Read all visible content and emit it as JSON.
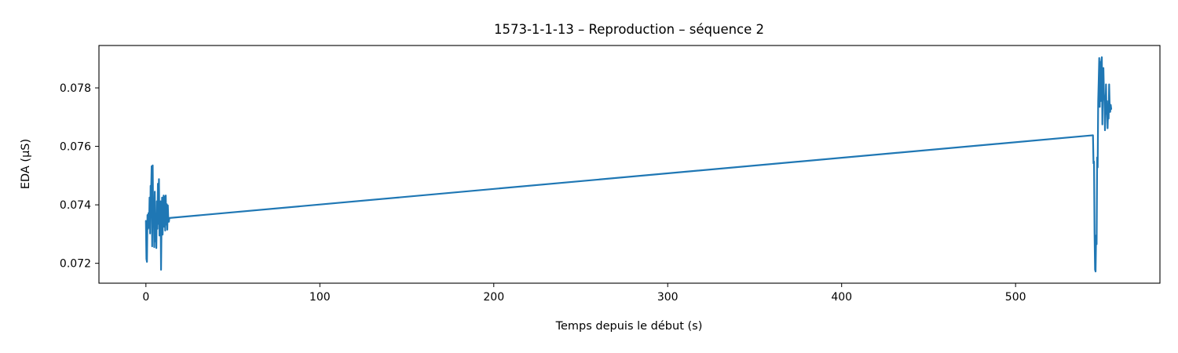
{
  "chart_data": {
    "type": "line",
    "title": "1573-1-1-13 – Reproduction – séquence 2",
    "xlabel": "Temps depuis le début (s)",
    "ylabel": "EDA (µS)",
    "xlim": [
      -27,
      583
    ],
    "ylim": [
      0.07132,
      0.07945
    ],
    "xticks": [
      0,
      100,
      200,
      300,
      400,
      500
    ],
    "yticks": [
      0.072,
      0.074,
      0.076,
      0.078
    ],
    "xtick_labels": [
      "0",
      "100",
      "200",
      "300",
      "400",
      "500"
    ],
    "ytick_labels": [
      "0.072",
      "0.074",
      "0.076",
      "0.078"
    ],
    "grid": false,
    "series": [
      {
        "color": "#1f77b4",
        "x": [
          0,
          0.3,
          0.6,
          0.9,
          1.2,
          1.5,
          1.8,
          2.1,
          2.4,
          2.7,
          3.0,
          3.3,
          3.6,
          3.9,
          4.2,
          4.5,
          4.8,
          5.1,
          5.4,
          5.7,
          6.0,
          6.3,
          6.6,
          6.9,
          7.2,
          7.5,
          7.8,
          8.1,
          8.4,
          8.7,
          9.0,
          9.3,
          9.6,
          9.9,
          10.2,
          10.5,
          10.8,
          11.1,
          11.4,
          11.7,
          12.0,
          12.3,
          12.6,
          12.9,
          13.2,
          13.5,
          544.5,
          544.8,
          545.1,
          545.4,
          545.7,
          546.0,
          546.3,
          546.6,
          546.9,
          547.2,
          547.5,
          547.8,
          548.1,
          548.4,
          548.7,
          549.0,
          549.3,
          549.6,
          549.9,
          550.2,
          550.5,
          550.8,
          551.1,
          551.4,
          551.7,
          552.0,
          552.3,
          552.6,
          552.9,
          553.2,
          553.5,
          553.8,
          554.1,
          554.4,
          554.7,
          555.0
        ],
        "y": [
          0.07345,
          0.07215,
          0.07205,
          0.07365,
          0.07318,
          0.07372,
          0.07322,
          0.07425,
          0.07302,
          0.07465,
          0.07445,
          0.07532,
          0.07258,
          0.07535,
          0.07335,
          0.07405,
          0.07255,
          0.07445,
          0.07275,
          0.07352,
          0.07252,
          0.07412,
          0.07318,
          0.07472,
          0.07335,
          0.07488,
          0.07295,
          0.07335,
          0.07412,
          0.07178,
          0.07342,
          0.07425,
          0.07298,
          0.07368,
          0.07432,
          0.07325,
          0.07428,
          0.07312,
          0.07432,
          0.07332,
          0.07402,
          0.07315,
          0.07398,
          0.07345,
          0.07342,
          0.07355,
          0.07638,
          0.07542,
          0.07548,
          0.07305,
          0.07178,
          0.07172,
          0.07295,
          0.07265,
          0.07562,
          0.07528,
          0.07755,
          0.07825,
          0.07902,
          0.07735,
          0.07888,
          0.07755,
          0.07892,
          0.07905,
          0.07675,
          0.07835,
          0.07868,
          0.07782,
          0.07755,
          0.07655,
          0.07705,
          0.07812,
          0.07712,
          0.07755,
          0.07662,
          0.07725,
          0.07695,
          0.07812,
          0.07738,
          0.07718,
          0.07742,
          0.07728
        ]
      }
    ]
  }
}
